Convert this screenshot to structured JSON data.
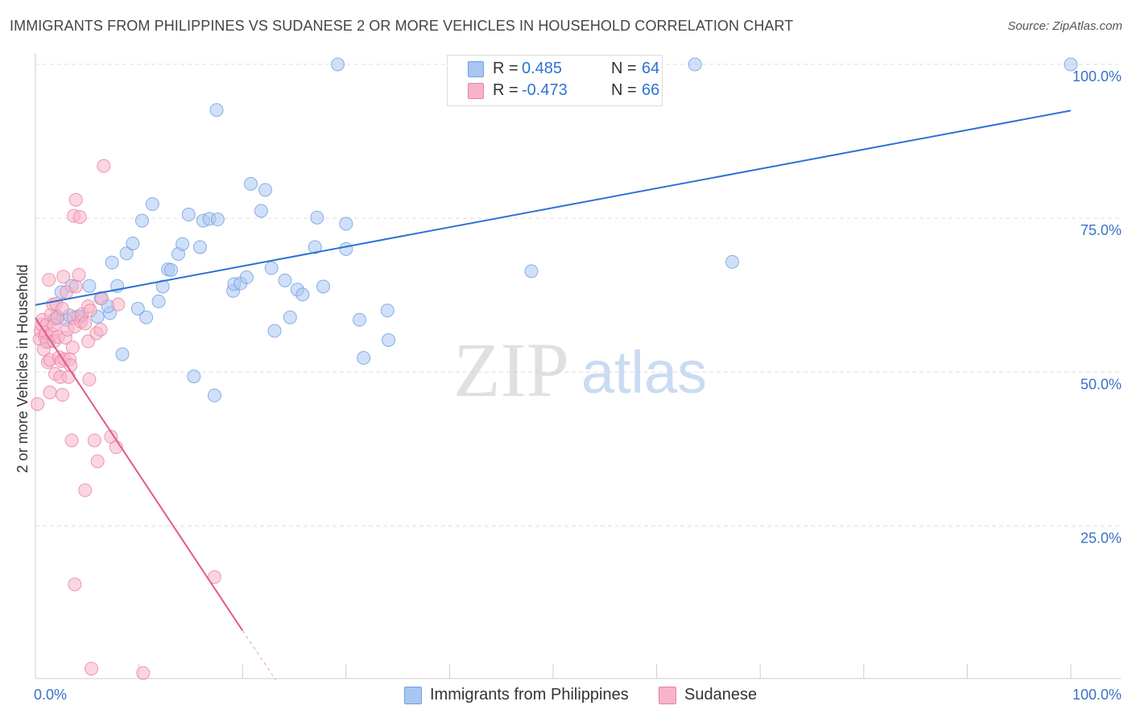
{
  "header": {
    "title": "IMMIGRANTS FROM PHILIPPINES VS SUDANESE 2 OR MORE VEHICLES IN HOUSEHOLD CORRELATION CHART",
    "source": "Source: ZipAtlas.com"
  },
  "watermark": {
    "zip": "ZIP",
    "atlas": "atlas"
  },
  "legend": {
    "r_label": "R =",
    "n_label": "N =",
    "series": [
      {
        "name": "Immigrants from Philippines",
        "r": "0.485",
        "n": "64"
      },
      {
        "name": "Sudanese",
        "r": "-0.473",
        "n": "66"
      }
    ]
  },
  "colors": {
    "blue_fill": "#a9c6f2",
    "blue_stroke": "#6f9fe0",
    "blue_line": "#2f72d3",
    "pink_fill": "#f6b4c9",
    "pink_stroke": "#ec7fa3",
    "pink_line": "#e05a8e",
    "axis_label": "#3a72c9",
    "grid": "#dddddd"
  },
  "chart_data": {
    "type": "scatter",
    "title": "IMMIGRANTS FROM PHILIPPINES VS SUDANESE 2 OR MORE VEHICLES IN HOUSEHOLD CORRELATION CHART",
    "xlabel": "",
    "ylabel": "2 or more Vehicles in Household",
    "xlim": [
      0,
      100
    ],
    "ylim": [
      0,
      102
    ],
    "x_tick_labels": [
      "0.0%",
      "100.0%"
    ],
    "y_ticks": [
      25,
      50,
      75,
      100
    ],
    "y_tick_labels": [
      "25.0%",
      "50.0%",
      "75.0%",
      "100.0%"
    ],
    "grid": true,
    "series": [
      {
        "name": "Immigrants from Philippines",
        "r": 0.485,
        "n": 64,
        "trend": {
          "x0": 0.0,
          "y0": 60.9,
          "x1": 100.0,
          "y1": 92.5
        },
        "points": [
          [
            1.3,
            55.0
          ],
          [
            1.8,
            58.6
          ],
          [
            2.1,
            59.0
          ],
          [
            2.5,
            63.0
          ],
          [
            3.0,
            58.5
          ],
          [
            3.3,
            59.2
          ],
          [
            3.5,
            64.0
          ],
          [
            4.4,
            59.0
          ],
          [
            5.2,
            64.0
          ],
          [
            6.0,
            59.0
          ],
          [
            6.3,
            62.0
          ],
          [
            7.2,
            59.6
          ],
          [
            7.0,
            60.7
          ],
          [
            7.4,
            67.8
          ],
          [
            7.9,
            64.0
          ],
          [
            8.4,
            52.9
          ],
          [
            8.8,
            69.3
          ],
          [
            9.4,
            70.9
          ],
          [
            9.9,
            60.3
          ],
          [
            10.3,
            74.6
          ],
          [
            10.7,
            58.9
          ],
          [
            11.3,
            77.3
          ],
          [
            11.9,
            61.5
          ],
          [
            12.3,
            63.9
          ],
          [
            12.8,
            66.7
          ],
          [
            13.1,
            66.6
          ],
          [
            13.8,
            69.2
          ],
          [
            14.2,
            70.8
          ],
          [
            14.8,
            75.6
          ],
          [
            15.3,
            49.3
          ],
          [
            15.9,
            70.3
          ],
          [
            16.2,
            74.6
          ],
          [
            16.8,
            74.9
          ],
          [
            17.6,
            74.8
          ],
          [
            17.3,
            46.2
          ],
          [
            17.5,
            92.6
          ],
          [
            19.1,
            63.2
          ],
          [
            19.2,
            64.3
          ],
          [
            19.8,
            64.4
          ],
          [
            20.4,
            65.4
          ],
          [
            20.8,
            80.6
          ],
          [
            21.8,
            76.2
          ],
          [
            22.2,
            79.6
          ],
          [
            22.8,
            66.9
          ],
          [
            23.1,
            56.7
          ],
          [
            24.1,
            64.9
          ],
          [
            24.6,
            58.9
          ],
          [
            25.3,
            63.4
          ],
          [
            25.8,
            62.6
          ],
          [
            27.2,
            75.1
          ],
          [
            27.0,
            70.3
          ],
          [
            27.8,
            63.9
          ],
          [
            29.2,
            100.0
          ],
          [
            30.0,
            74.1
          ],
          [
            30.0,
            70.0
          ],
          [
            31.3,
            58.5
          ],
          [
            31.7,
            52.3
          ],
          [
            34.0,
            60.0
          ],
          [
            34.1,
            55.2
          ],
          [
            47.9,
            66.4
          ],
          [
            63.7,
            100.0
          ],
          [
            67.3,
            67.9
          ],
          [
            100.0,
            100.0
          ],
          [
            4.1,
            59.0
          ]
        ]
      },
      {
        "name": "Sudanese",
        "r": -0.473,
        "n": 66,
        "trend": {
          "x0": 0.0,
          "y0": 58.8,
          "x1": 20.0,
          "y1": 8.0,
          "dash_to_x": 23.2,
          "dash_to_y": 0.0
        },
        "points": [
          [
            0.2,
            44.8
          ],
          [
            0.4,
            55.4
          ],
          [
            0.5,
            56.7
          ],
          [
            0.6,
            57.7
          ],
          [
            0.7,
            58.5
          ],
          [
            0.8,
            53.7
          ],
          [
            0.9,
            55.8
          ],
          [
            1.0,
            56.4
          ],
          [
            1.1,
            54.9
          ],
          [
            1.1,
            57.7
          ],
          [
            1.2,
            51.6
          ],
          [
            1.3,
            65.0
          ],
          [
            1.4,
            46.7
          ],
          [
            1.4,
            52.0
          ],
          [
            1.5,
            59.3
          ],
          [
            1.6,
            56.2
          ],
          [
            1.7,
            61.0
          ],
          [
            1.8,
            55.0
          ],
          [
            1.8,
            57.6
          ],
          [
            1.9,
            49.7
          ],
          [
            2.0,
            61.1
          ],
          [
            2.1,
            58.8
          ],
          [
            2.2,
            55.7
          ],
          [
            2.3,
            52.4
          ],
          [
            2.4,
            49.2
          ],
          [
            2.5,
            51.8
          ],
          [
            2.6,
            46.3
          ],
          [
            2.7,
            65.5
          ],
          [
            2.8,
            52.1
          ],
          [
            2.9,
            55.6
          ],
          [
            3.0,
            63.0
          ],
          [
            3.1,
            56.9
          ],
          [
            3.2,
            49.2
          ],
          [
            3.3,
            52.1
          ],
          [
            3.4,
            51.1
          ],
          [
            3.5,
            38.9
          ],
          [
            3.6,
            54.0
          ],
          [
            3.7,
            58.8
          ],
          [
            3.8,
            57.4
          ],
          [
            3.9,
            63.9
          ],
          [
            3.8,
            15.5
          ],
          [
            3.7,
            75.4
          ],
          [
            3.9,
            78.0
          ],
          [
            4.2,
            65.8
          ],
          [
            4.3,
            75.2
          ],
          [
            4.4,
            58.2
          ],
          [
            4.5,
            59.4
          ],
          [
            4.8,
            30.8
          ],
          [
            5.1,
            60.7
          ],
          [
            5.1,
            55.0
          ],
          [
            5.2,
            48.8
          ],
          [
            5.3,
            60.0
          ],
          [
            5.7,
            38.9
          ],
          [
            5.9,
            56.3
          ],
          [
            6.0,
            35.5
          ],
          [
            5.4,
            1.8
          ],
          [
            6.3,
            56.9
          ],
          [
            6.4,
            62.0
          ],
          [
            6.6,
            83.5
          ],
          [
            7.3,
            39.5
          ],
          [
            7.8,
            37.8
          ],
          [
            8.0,
            61.0
          ],
          [
            10.4,
            1.1
          ],
          [
            17.3,
            16.7
          ],
          [
            2.6,
            60.3
          ],
          [
            4.8,
            57.9
          ]
        ]
      }
    ]
  }
}
